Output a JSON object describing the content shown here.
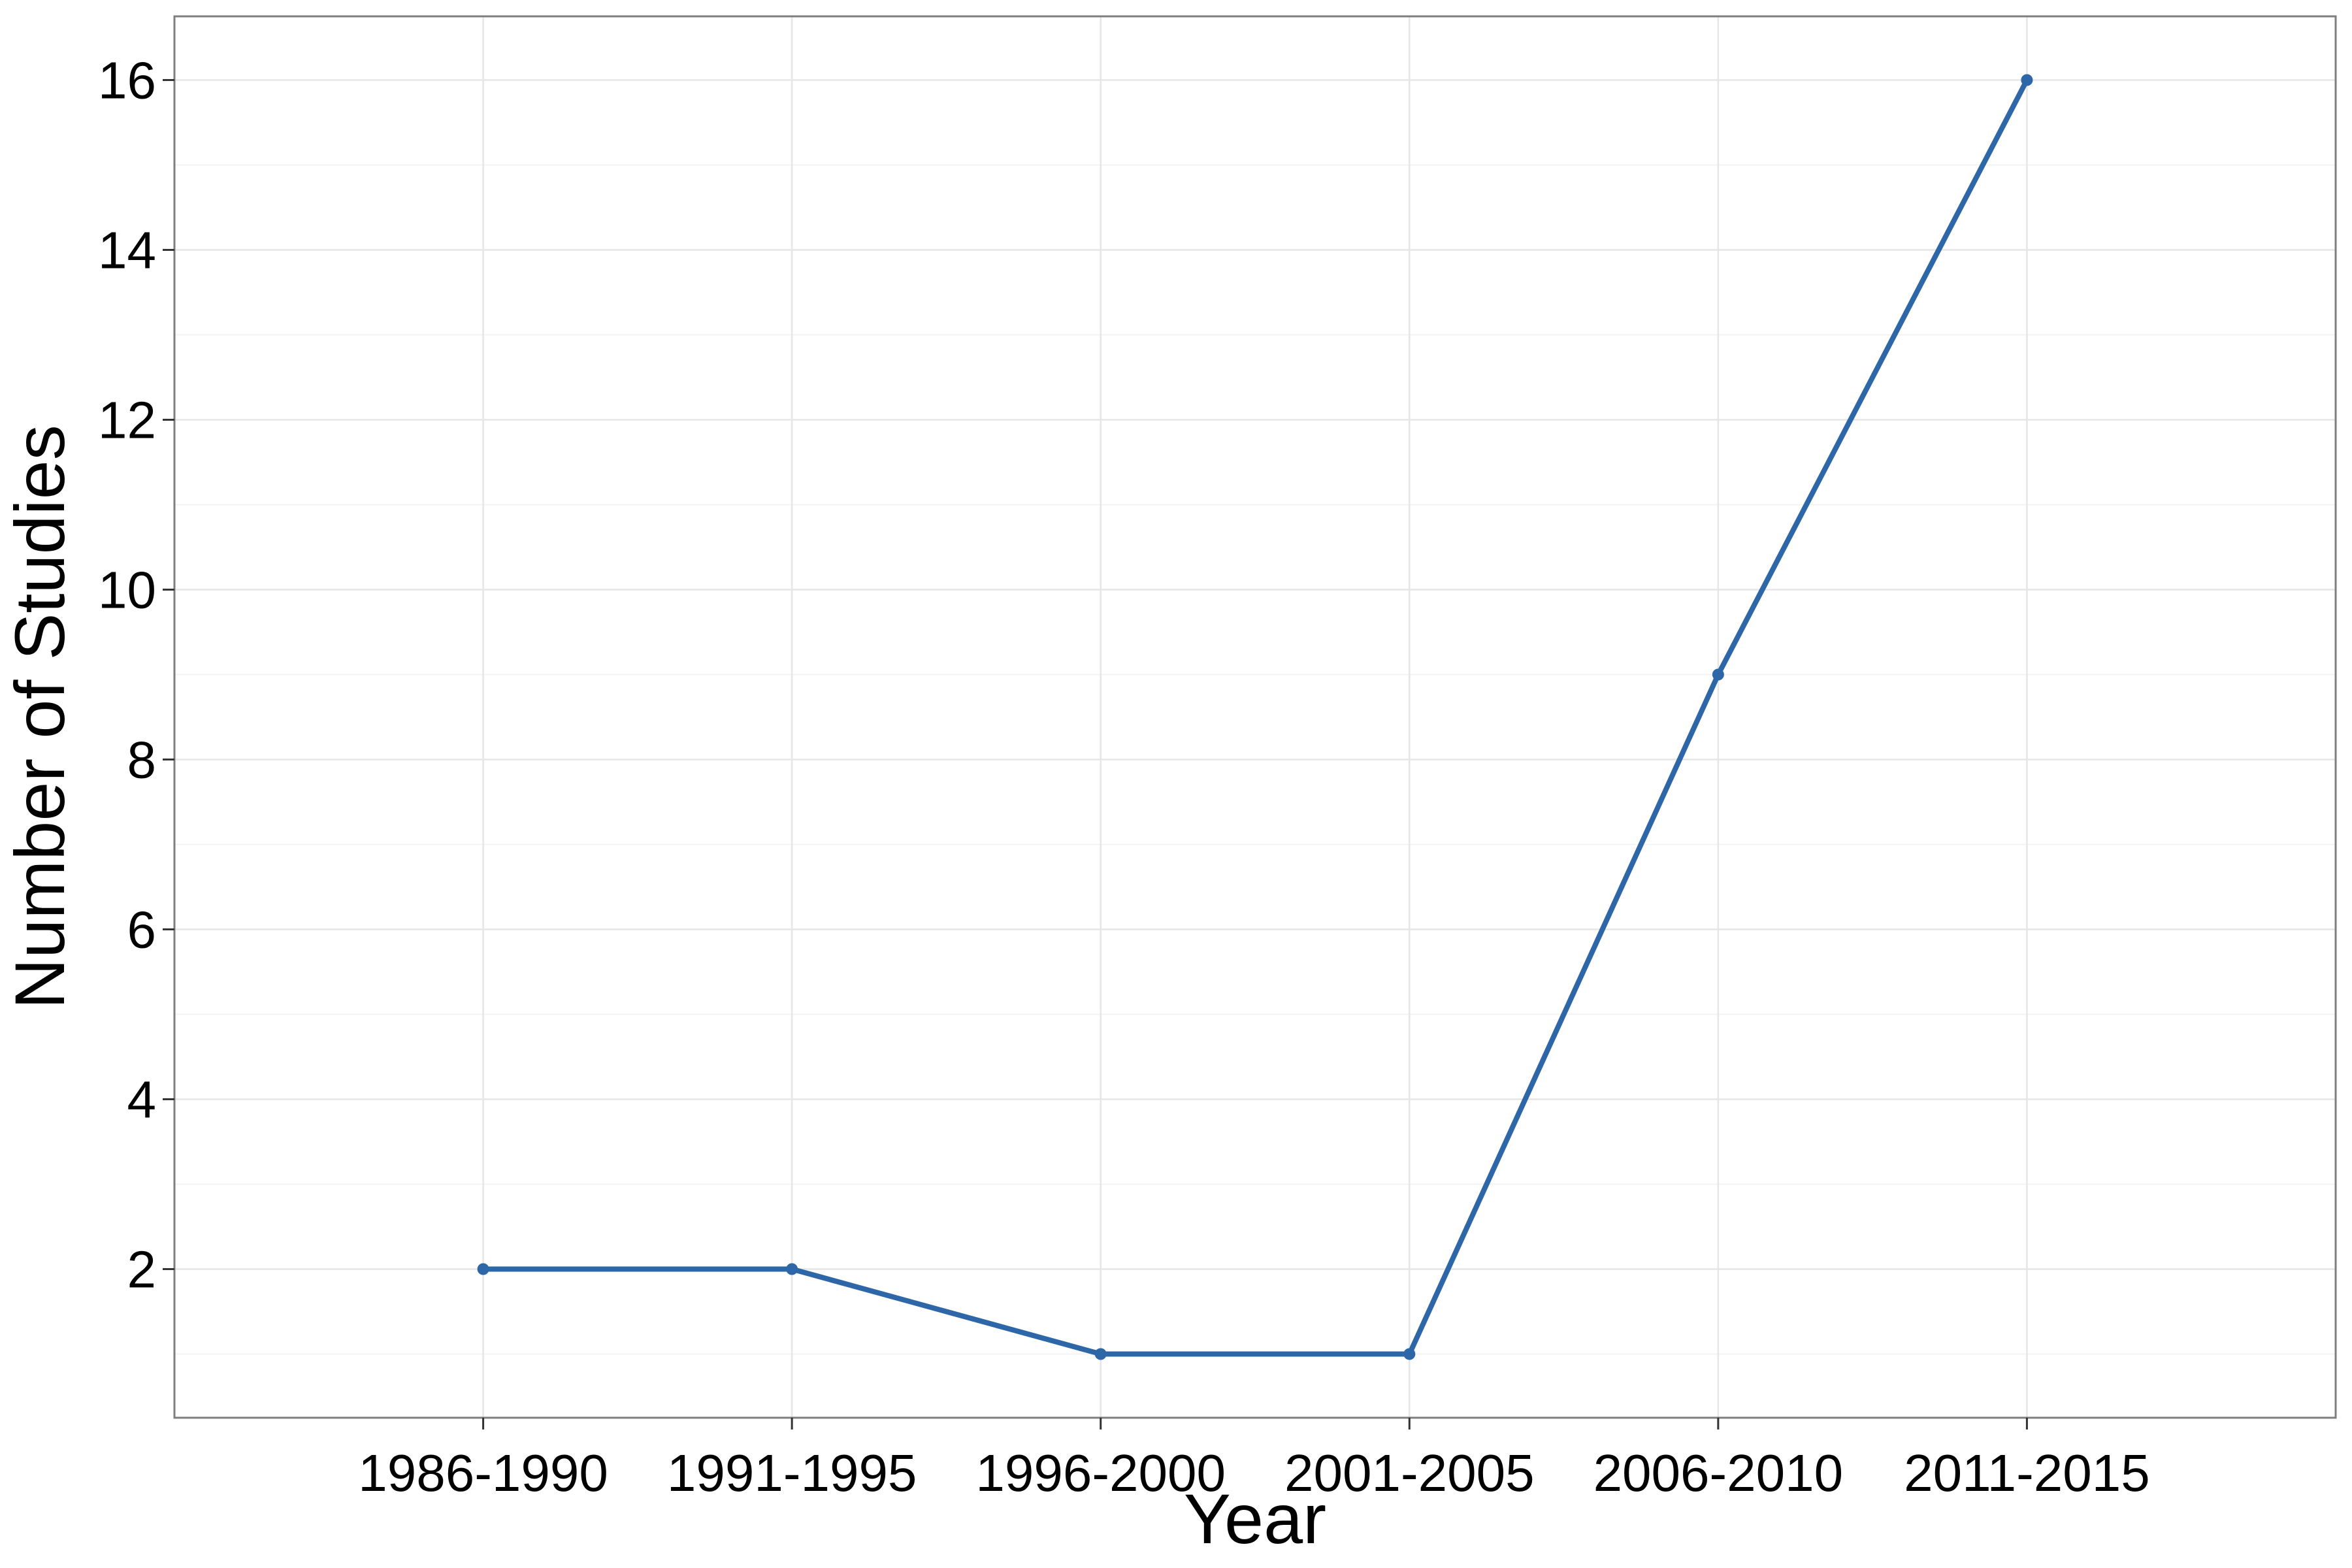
{
  "chart_data": {
    "type": "line",
    "title": "",
    "xlabel": "Year",
    "ylabel": "Number of Studies",
    "categories": [
      "1986-1990",
      "1991-1995",
      "1996-2000",
      "2001-2005",
      "2006-2010",
      "2011-2015"
    ],
    "series": [
      {
        "values": [
          2,
          2,
          1,
          1,
          9,
          16
        ]
      }
    ],
    "yticks": [
      2,
      4,
      6,
      8,
      10,
      12,
      14,
      16
    ],
    "ylim": [
      0.25,
      16.75
    ],
    "grid": true,
    "legend": "none",
    "colors": {
      "line": "#2e67a8",
      "grid_major": "#e6e6e6",
      "grid_minor": "#f3f3f3",
      "panel_border": "#7f7f7f",
      "text": "#000000"
    }
  }
}
